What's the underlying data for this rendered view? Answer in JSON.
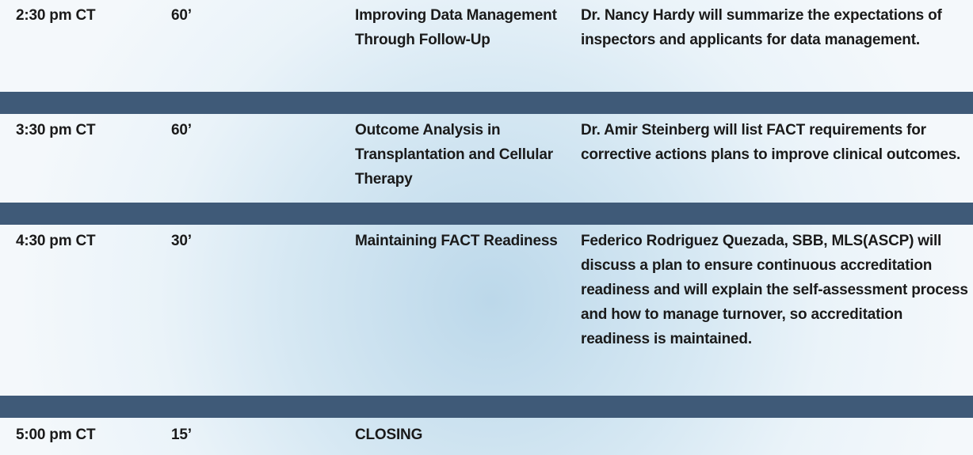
{
  "table": {
    "rows": [
      {
        "time": "2:30 pm CT",
        "duration": "60’",
        "title": "Improving Data Management Through Follow-Up",
        "description": "Dr. Nancy Hardy will summarize the expectations of inspectors and applicants for data management."
      },
      {
        "time": "3:30 pm CT",
        "duration": "60’",
        "title": "Outcome Analysis in Transplantation and Cellular Therapy",
        "description": "Dr. Amir Steinberg will list FACT requirements for corrective actions plans to improve clinical outcomes."
      },
      {
        "time": "4:30 pm CT",
        "duration": "30’",
        "title": "Maintaining FACT Readiness",
        "description": "Federico Rodriguez Quezada, SBB, MLS(ASCP) will discuss a plan to ensure continuous accreditation readiness and will explain the self-assessment process and how to manage turnover, so accreditation readiness is maintained."
      },
      {
        "time": "5:00 pm CT",
        "duration": "15’",
        "title": "CLOSING"
      }
    ]
  }
}
